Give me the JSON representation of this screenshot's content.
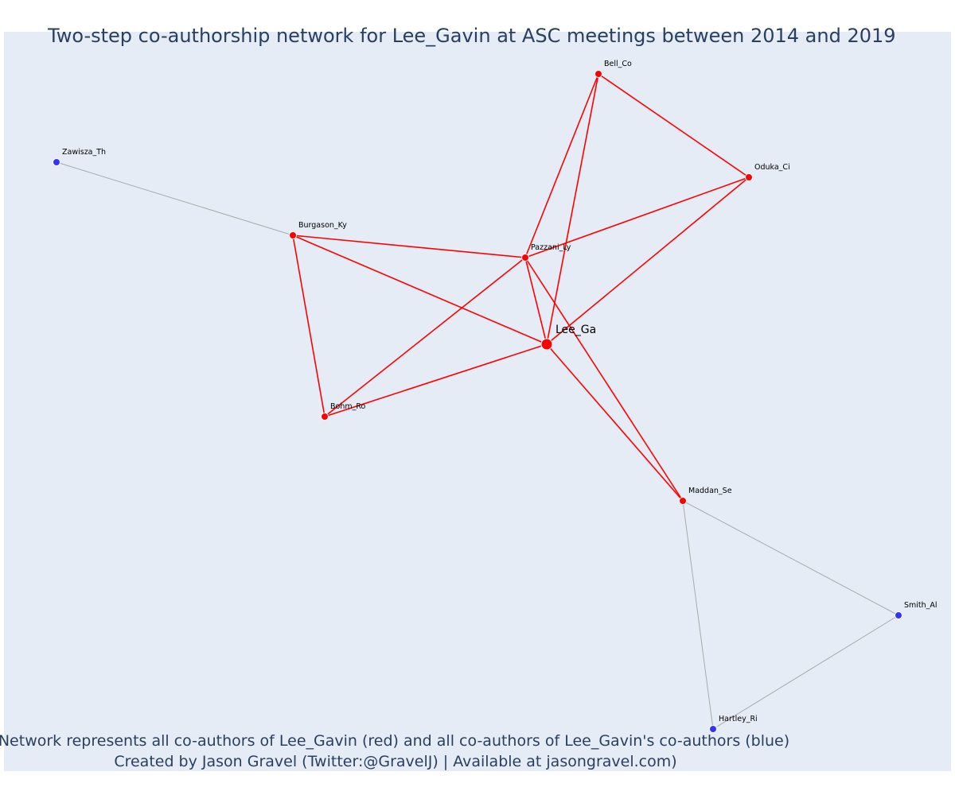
{
  "chart": {
    "title": "Two-step co-authorship network for Lee_Gavin at ASC meetings between 2014 and 2019",
    "caption_line1": "Network represents all co-authors of Lee_Gavin (red) and all co-authors of Lee_Gavin's co-authors (blue)",
    "caption_line2": "Created by Jason Gravel (Twitter:@GravelJ) | Available at jasongravel.com)"
  },
  "colors": {
    "background": "#e5ecf6",
    "first_step": "#ff0000",
    "second_step": "#3333ff",
    "first_step_edge": "#ff0000",
    "second_step_edge": "#aaaaaa"
  },
  "nodes": [
    {
      "id": "Lee_Ga",
      "label": "Lee_Ga",
      "group": "ego"
    },
    {
      "id": "Bell_Co",
      "label": "Bell_Co",
      "group": "first_step"
    },
    {
      "id": "Oduka_Ci",
      "label": "Oduka_Ci",
      "group": "first_step"
    },
    {
      "id": "Pazzani_Ly",
      "label": "Pazzani_Ly",
      "group": "first_step"
    },
    {
      "id": "Burgason_Ky",
      "label": "Burgason_Ky",
      "group": "first_step"
    },
    {
      "id": "Bohm_Ro",
      "label": "Bohm_Ro",
      "group": "first_step"
    },
    {
      "id": "Maddan_Se",
      "label": "Maddan_Se",
      "group": "first_step"
    },
    {
      "id": "Zawisza_Th",
      "label": "Zawisza_Th",
      "group": "second_step"
    },
    {
      "id": "Smith_Al",
      "label": "Smith_Al",
      "group": "second_step"
    },
    {
      "id": "Hartley_Ri",
      "label": "Hartley_Ri",
      "group": "second_step"
    }
  ],
  "edges": [
    {
      "source": "Lee_Ga",
      "target": "Bell_Co",
      "group": "first_step"
    },
    {
      "source": "Lee_Ga",
      "target": "Oduka_Ci",
      "group": "first_step"
    },
    {
      "source": "Lee_Ga",
      "target": "Pazzani_Ly",
      "group": "first_step"
    },
    {
      "source": "Lee_Ga",
      "target": "Burgason_Ky",
      "group": "first_step"
    },
    {
      "source": "Lee_Ga",
      "target": "Bohm_Ro",
      "group": "first_step"
    },
    {
      "source": "Lee_Ga",
      "target": "Maddan_Se",
      "group": "first_step"
    },
    {
      "source": "Bell_Co",
      "target": "Oduka_Ci",
      "group": "first_step"
    },
    {
      "source": "Bell_Co",
      "target": "Pazzani_Ly",
      "group": "first_step"
    },
    {
      "source": "Pazzani_Ly",
      "target": "Oduka_Ci",
      "group": "first_step"
    },
    {
      "source": "Pazzani_Ly",
      "target": "Burgason_Ky",
      "group": "first_step"
    },
    {
      "source": "Pazzani_Ly",
      "target": "Bohm_Ro",
      "group": "first_step"
    },
    {
      "source": "Pazzani_Ly",
      "target": "Maddan_Se",
      "group": "first_step"
    },
    {
      "source": "Burgason_Ky",
      "target": "Bohm_Ro",
      "group": "first_step"
    },
    {
      "source": "Burgason_Ky",
      "target": "Zawisza_Th",
      "group": "second_step"
    },
    {
      "source": "Maddan_Se",
      "target": "Smith_Al",
      "group": "second_step"
    },
    {
      "source": "Maddan_Se",
      "target": "Hartley_Ri",
      "group": "second_step"
    },
    {
      "source": "Smith_Al",
      "target": "Hartley_Ri",
      "group": "second_step"
    }
  ]
}
